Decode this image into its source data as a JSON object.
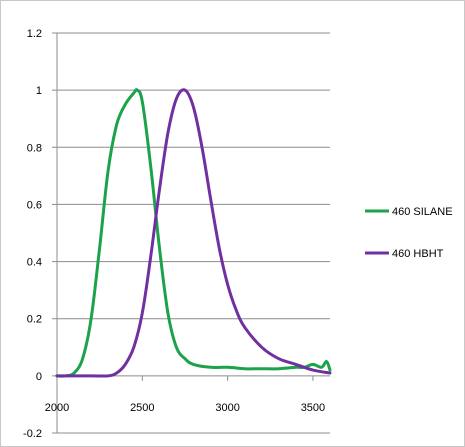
{
  "chart_data": {
    "type": "line",
    "title": "",
    "xlabel": "",
    "ylabel": "",
    "xlim": [
      2000,
      3600
    ],
    "ylim": [
      -0.2,
      1.2
    ],
    "x_ticks": [
      "2000",
      "2500",
      "3000",
      "3500"
    ],
    "y_ticks": [
      "-0.2",
      "0",
      "0.2",
      "0.4",
      "0.6",
      "0.8",
      "1",
      "1.2"
    ],
    "grid": "horizontal",
    "legend": "right",
    "series": [
      {
        "name": "460 SILANE",
        "color": "#1aa34a",
        "x": [
          2000,
          2050,
          2100,
          2150,
          2200,
          2250,
          2300,
          2350,
          2400,
          2450,
          2470,
          2500,
          2550,
          2600,
          2650,
          2700,
          2750,
          2800,
          2900,
          3000,
          3100,
          3200,
          3300,
          3400,
          3450,
          3500,
          3550,
          3580,
          3600
        ],
        "y": [
          0.0,
          0.0,
          0.01,
          0.06,
          0.2,
          0.45,
          0.72,
          0.88,
          0.95,
          0.99,
          1.0,
          0.96,
          0.73,
          0.45,
          0.22,
          0.1,
          0.06,
          0.04,
          0.03,
          0.03,
          0.025,
          0.025,
          0.025,
          0.03,
          0.03,
          0.04,
          0.03,
          0.05,
          0.02
        ]
      },
      {
        "name": "460 HBHT",
        "color": "#7030a0",
        "x": [
          2000,
          2200,
          2300,
          2350,
          2400,
          2450,
          2500,
          2550,
          2600,
          2650,
          2700,
          2750,
          2800,
          2850,
          2900,
          2950,
          3000,
          3050,
          3100,
          3200,
          3300,
          3400,
          3500,
          3600
        ],
        "y": [
          0.0,
          0.0,
          0.0,
          0.01,
          0.04,
          0.1,
          0.22,
          0.42,
          0.65,
          0.85,
          0.97,
          1.0,
          0.94,
          0.8,
          0.62,
          0.45,
          0.32,
          0.23,
          0.17,
          0.1,
          0.06,
          0.04,
          0.02,
          0.01
        ]
      }
    ]
  }
}
